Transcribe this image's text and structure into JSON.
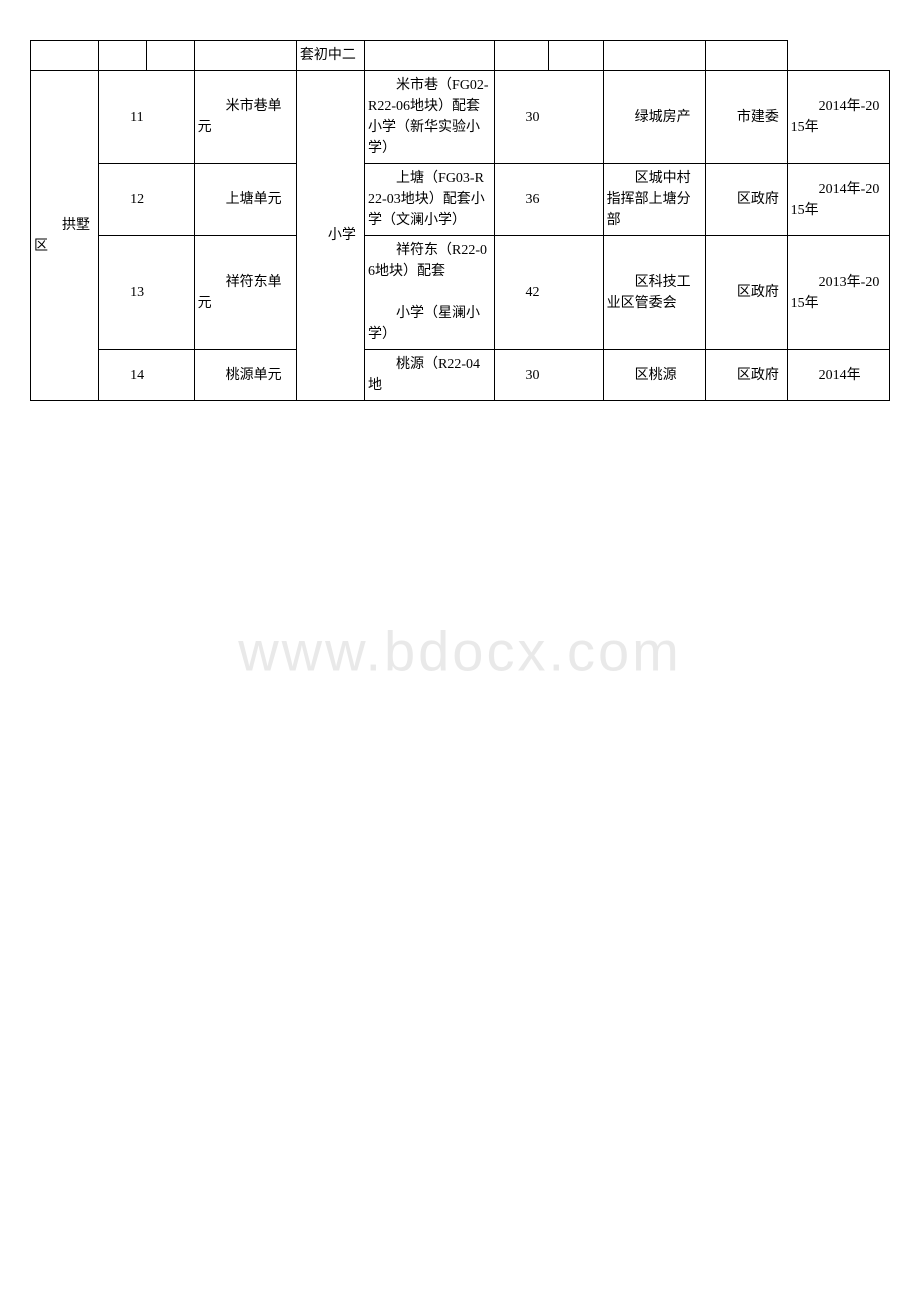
{
  "watermark": "www.bdocx.com",
  "table": {
    "rows": [
      {
        "cells": [
          "",
          "",
          "",
          "",
          "套初中二",
          "",
          "",
          "",
          "",
          ""
        ]
      }
    ],
    "district": "　　拱墅区",
    "school_level": "　　小学",
    "items": [
      {
        "seq": "　　11",
        "unit": "　　米市巷单元",
        "project": "　　米市巷（FG02-R22-06地块）配套小学（新华实验小学）",
        "n1": "　　30",
        "n2": "",
        "dept": "　　绿城房产",
        "auth": "　　市建委",
        "year": "　　2014年-2015年"
      },
      {
        "seq": "　　12",
        "unit": "　　上塘单元",
        "project": "　　上塘（FG03-R22-03地块）配套小学（文澜小学）",
        "n1": "　　36",
        "n2": "",
        "dept": "　　区城中村指挥部上塘分部",
        "auth": "　　区政府",
        "year": "　　2014年-2015年"
      },
      {
        "seq": "　　13",
        "unit": "　　祥符东单元",
        "project_part1": "　　祥符东（R22-06地块）配套",
        "project_part2": "　　小学（星澜小学）",
        "n1": "　　42",
        "n2": "",
        "dept": "　　区科技工业区管委会",
        "auth": "　　区政府",
        "year": "　　2013年-2015年"
      },
      {
        "seq": "　　14",
        "unit": "　　桃源单元",
        "project": "　　桃源（R22-04地",
        "n1": "　　30",
        "n2": "",
        "dept": "　　区桃源",
        "auth": "　　区政府",
        "year": "　　2014年"
      }
    ]
  }
}
